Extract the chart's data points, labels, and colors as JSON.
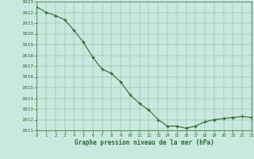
{
  "x": [
    0,
    1,
    2,
    3,
    4,
    5,
    6,
    7,
    8,
    9,
    10,
    11,
    12,
    13,
    14,
    15,
    16,
    17,
    18,
    19,
    20,
    21,
    22,
    23
  ],
  "y": [
    1022.5,
    1022.0,
    1021.7,
    1021.3,
    1020.3,
    1019.2,
    1017.8,
    1016.7,
    1016.3,
    1015.5,
    1014.3,
    1013.5,
    1012.9,
    1012.0,
    1011.4,
    1011.4,
    1011.2,
    1011.4,
    1011.8,
    1012.0,
    1012.1,
    1012.2,
    1012.3,
    1012.2
  ],
  "ylim": [
    1011,
    1023
  ],
  "xlim": [
    0,
    23
  ],
  "yticks": [
    1011,
    1012,
    1013,
    1014,
    1015,
    1016,
    1017,
    1018,
    1019,
    1020,
    1021,
    1022,
    1023
  ],
  "xticks": [
    0,
    1,
    2,
    3,
    4,
    5,
    6,
    7,
    8,
    9,
    10,
    11,
    12,
    13,
    14,
    15,
    16,
    17,
    18,
    19,
    20,
    21,
    22,
    23
  ],
  "line_color": "#2d6a2d",
  "marker": "+",
  "marker_color": "#2d6a2d",
  "bg_color": "#c8e8e0",
  "grid_color": "#5a9a5a",
  "xlabel": "Graphe pression niveau de la mer (hPa)",
  "xlabel_color": "#2d6a2d",
  "tick_color": "#2d6a2d"
}
